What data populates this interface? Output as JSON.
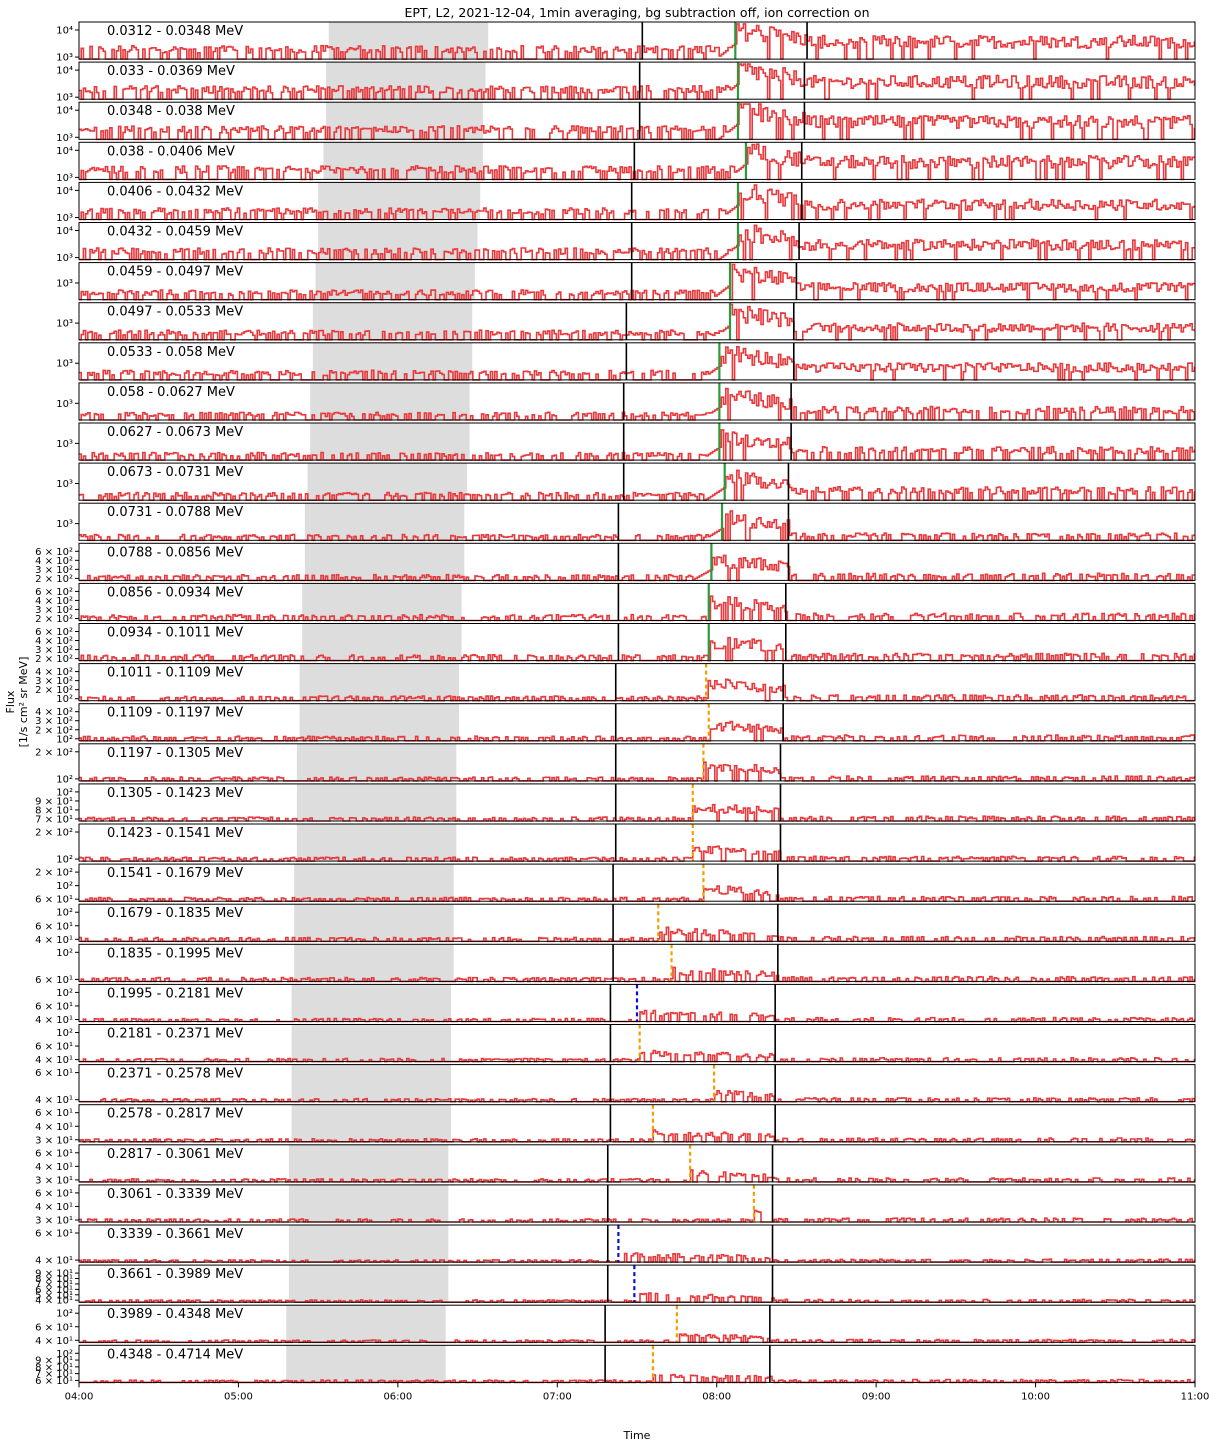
{
  "chart_data": {
    "type": "line",
    "title": "EPT, L2, 2021-12-04, 1min averaging, bg subtraction off, ion correction on",
    "xlabel": "Time",
    "ylabel": "Flux",
    "ylabel_unit": "[1/s cm² sr MeV]",
    "x_range": [
      "04:00",
      "11:00"
    ],
    "x_ticks": [
      "04:00",
      "05:00",
      "06:00",
      "07:00",
      "08:00",
      "09:00",
      "10:00",
      "11:00"
    ],
    "y_scale": "log",
    "series_color": "#e8393c",
    "shaded_color": "#dddddd",
    "panels": [
      {
        "label": "0.0312 - 0.0348 MeV",
        "yticks": [
          "10⁴",
          "10³"
        ],
        "shade": [
          "05:34",
          "06:34"
        ],
        "vlines": [
          "07:32",
          "08:34"
        ],
        "onset": {
          "time": "08:07",
          "color": "#2a9a3a"
        },
        "level": 0.35,
        "peak": 0.85
      },
      {
        "label": "0.033 - 0.0369 MeV",
        "yticks": [
          "10⁴",
          "10³"
        ],
        "shade": [
          "05:33",
          "06:33"
        ],
        "vlines": [
          "07:31",
          "08:33"
        ],
        "onset": {
          "time": "08:08",
          "color": "#2a9a3a"
        },
        "level": 0.35,
        "peak": 0.85
      },
      {
        "label": "0.0348 - 0.038 MeV",
        "yticks": [
          "10⁴",
          "10³"
        ],
        "shade": [
          "05:33",
          "06:32"
        ],
        "vlines": [
          "07:31",
          "08:33"
        ],
        "onset": {
          "time": "08:08",
          "color": "#2a9a3a"
        },
        "level": 0.35,
        "peak": 0.85
      },
      {
        "label": "0.038 - 0.0406 MeV",
        "yticks": [
          "10⁴",
          "10³"
        ],
        "shade": [
          "05:32",
          "06:32"
        ],
        "vlines": [
          "07:29",
          "08:32"
        ],
        "onset": {
          "time": "08:11",
          "color": "#2a9a3a"
        },
        "level": 0.35,
        "peak": 0.85
      },
      {
        "label": "0.0406 - 0.0432 MeV",
        "yticks": [
          "10⁴",
          "10³"
        ],
        "shade": [
          "05:30",
          "06:31"
        ],
        "vlines": [
          "07:28",
          "08:32"
        ],
        "onset": {
          "time": "08:08",
          "color": "#2a9a3a"
        },
        "level": 0.3,
        "peak": 0.8
      },
      {
        "label": "0.0432 - 0.0459 MeV",
        "yticks": [
          "10⁴",
          "10³"
        ],
        "shade": [
          "05:30",
          "06:30"
        ],
        "vlines": [
          "07:28",
          "08:31"
        ],
        "onset": {
          "time": "08:08",
          "color": "#2a9a3a"
        },
        "level": 0.3,
        "peak": 0.8
      },
      {
        "label": "0.0459 - 0.0497 MeV",
        "yticks": [
          "10³"
        ],
        "shade": [
          "05:29",
          "06:29"
        ],
        "vlines": [
          "07:28",
          "08:30"
        ],
        "onset": {
          "time": "08:05",
          "color": "#2a9a3a"
        },
        "level": 0.25,
        "peak": 0.8
      },
      {
        "label": "0.0497 - 0.0533 MeV",
        "yticks": [
          "10³"
        ],
        "shade": [
          "05:28",
          "06:28"
        ],
        "vlines": [
          "07:26",
          "08:29"
        ],
        "onset": {
          "time": "08:05",
          "color": "#2a9a3a"
        },
        "level": 0.25,
        "peak": 0.8
      },
      {
        "label": "0.0533 - 0.058 MeV",
        "yticks": [
          "10³"
        ],
        "shade": [
          "05:28",
          "06:28"
        ],
        "vlines": [
          "07:26",
          "08:29"
        ],
        "onset": {
          "time": "08:01",
          "color": "#2a9a3a"
        },
        "level": 0.25,
        "peak": 0.75
      },
      {
        "label": "0.058 - 0.0627 MeV",
        "yticks": [
          "10³"
        ],
        "shade": [
          "05:27",
          "06:27"
        ],
        "vlines": [
          "07:25",
          "08:28"
        ],
        "onset": {
          "time": "08:01",
          "color": "#2a9a3a"
        },
        "level": 0.2,
        "peak": 0.7
      },
      {
        "label": "0.0627 - 0.0673 MeV",
        "yticks": [
          "10³"
        ],
        "shade": [
          "05:27",
          "06:27"
        ],
        "vlines": [
          "07:25",
          "08:28"
        ],
        "onset": {
          "time": "08:01",
          "color": "#2a9a3a"
        },
        "level": 0.2,
        "peak": 0.7
      },
      {
        "label": "0.0673 - 0.0731 MeV",
        "yticks": [
          "10³"
        ],
        "shade": [
          "05:26",
          "06:26"
        ],
        "vlines": [
          "07:25",
          "08:27"
        ],
        "onset": {
          "time": "08:03",
          "color": "#2a9a3a"
        },
        "level": 0.2,
        "peak": 0.7
      },
      {
        "label": "0.0731 - 0.0788 MeV",
        "yticks": [
          "10³"
        ],
        "shade": [
          "05:25",
          "06:25"
        ],
        "vlines": [
          "07:23",
          "08:27"
        ],
        "onset": {
          "time": "08:02",
          "color": "#2a9a3a"
        },
        "level": 0.15,
        "peak": 0.65
      },
      {
        "label": "0.0788 - 0.0856 MeV",
        "yticks": [
          "6 × 10²",
          "4 × 10²",
          "3 × 10²",
          "2 × 10²"
        ],
        "shade": [
          "05:25",
          "06:25"
        ],
        "vlines": [
          "07:23",
          "08:27"
        ],
        "onset": {
          "time": "07:58",
          "color": "#2a9a3a"
        },
        "level": 0.15,
        "peak": 0.6
      },
      {
        "label": "0.0856 - 0.0934 MeV",
        "yticks": [
          "6 × 10²",
          "4 × 10²",
          "3 × 10²",
          "2 × 10²"
        ],
        "shade": [
          "05:24",
          "06:24"
        ],
        "vlines": [
          "07:23",
          "08:26"
        ],
        "onset": {
          "time": "07:57",
          "color": "#2a9a3a"
        },
        "level": 0.15,
        "peak": 0.55
      },
      {
        "label": "0.0934 - 0.1011 MeV",
        "yticks": [
          "6 × 10²",
          "4 × 10²",
          "3 × 10²",
          "2 × 10²"
        ],
        "shade": [
          "05:24",
          "06:24"
        ],
        "vlines": [
          "07:23",
          "08:26"
        ],
        "onset": {
          "time": "07:57",
          "color": "#2a9a3a"
        },
        "level": 0.15,
        "peak": 0.55
      },
      {
        "label": "0.1011 - 0.1109 MeV",
        "yticks": [
          "4 × 10²",
          "3 × 10²",
          "2 × 10²",
          "10²"
        ],
        "shade": [
          "05:23",
          "06:23"
        ],
        "vlines": [
          "07:22",
          "08:25"
        ],
        "onset": {
          "time": "07:56",
          "color": "#f2a000"
        },
        "level": 0.12,
        "peak": 0.5
      },
      {
        "label": "0.1109 - 0.1197 MeV",
        "yticks": [
          "4 × 10²",
          "3 × 10²",
          "2 × 10²",
          "10²"
        ],
        "shade": [
          "05:23",
          "06:23"
        ],
        "vlines": [
          "07:22",
          "08:25"
        ],
        "onset": {
          "time": "07:57",
          "color": "#f2a000"
        },
        "level": 0.12,
        "peak": 0.45
      },
      {
        "label": "0.1197 - 0.1305 MeV",
        "yticks": [
          "2 × 10²",
          "10²"
        ],
        "shade": [
          "05:22",
          "06:22"
        ],
        "vlines": [
          "07:22",
          "08:24"
        ],
        "onset": {
          "time": "07:55",
          "color": "#f2a000"
        },
        "level": 0.1,
        "peak": 0.45
      },
      {
        "label": "0.1305 - 0.1423 MeV",
        "yticks": [
          "10²",
          "9 × 10¹",
          "8 × 10¹",
          "7 × 10¹"
        ],
        "shade": [
          "05:22",
          "06:22"
        ],
        "vlines": [
          "07:22",
          "08:24"
        ],
        "onset": {
          "time": "07:51",
          "color": "#f2a000"
        },
        "level": 0.1,
        "peak": 0.4
      },
      {
        "label": "0.1423 - 0.1541 MeV",
        "yticks": [
          "2 × 10²",
          "10²"
        ],
        "shade": [
          "05:22",
          "06:22"
        ],
        "vlines": [
          "07:22",
          "08:24"
        ],
        "onset": {
          "time": "07:51",
          "color": "#f2a000"
        },
        "level": 0.1,
        "peak": 0.35
      },
      {
        "label": "0.1541 - 0.1679 MeV",
        "yticks": [
          "2 × 10²",
          "10²",
          "6 × 10¹"
        ],
        "shade": [
          "05:21",
          "06:21"
        ],
        "vlines": [
          "07:21",
          "08:23"
        ],
        "onset": {
          "time": "07:55",
          "color": "#f2a000"
        },
        "level": 0.1,
        "peak": 0.35
      },
      {
        "label": "0.1679 - 0.1835 MeV",
        "yticks": [
          "10²",
          "6 × 10¹",
          "4 × 10¹"
        ],
        "shade": [
          "05:21",
          "06:21"
        ],
        "vlines": [
          "07:21",
          "08:23"
        ],
        "onset": {
          "time": "07:38",
          "color": "#f2a000"
        },
        "level": 0.1,
        "peak": 0.3
      },
      {
        "label": "0.1835 - 0.1995 MeV",
        "yticks": [
          "10²",
          "6 × 10¹"
        ],
        "shade": [
          "05:21",
          "06:21"
        ],
        "vlines": [
          "07:21",
          "08:23"
        ],
        "onset": {
          "time": "07:43",
          "color": "#f2a000"
        },
        "level": 0.1,
        "peak": 0.3
      },
      {
        "label": "0.1995 - 0.2181 MeV",
        "yticks": [
          "10²",
          "6 × 10¹",
          "4 × 10¹"
        ],
        "shade": [
          "05:20",
          "06:20"
        ],
        "vlines": [
          "07:20",
          "08:22"
        ],
        "onset": {
          "time": "07:30",
          "color": "#1010cc"
        },
        "level": 0.08,
        "peak": 0.25
      },
      {
        "label": "0.2181 - 0.2371 MeV",
        "yticks": [
          "10²",
          "6 × 10¹",
          "4 × 10¹"
        ],
        "shade": [
          "05:20",
          "06:20"
        ],
        "vlines": [
          "07:20",
          "08:22"
        ],
        "onset": {
          "time": "07:31",
          "color": "#f2a000"
        },
        "level": 0.08,
        "peak": 0.25
      },
      {
        "label": "0.2371 - 0.2578 MeV",
        "yticks": [
          "6 × 10¹",
          "4 × 10¹"
        ],
        "shade": [
          "05:20",
          "06:20"
        ],
        "vlines": [
          "07:20",
          "08:22"
        ],
        "onset": {
          "time": "07:59",
          "color": "#f2a000"
        },
        "level": 0.08,
        "peak": 0.25
      },
      {
        "label": "0.2578 - 0.2817 MeV",
        "yticks": [
          "6 × 10¹",
          "4 × 10¹",
          "3 × 10¹"
        ],
        "shade": [
          "05:20",
          "06:20"
        ],
        "vlines": [
          "07:20",
          "08:22"
        ],
        "onset": {
          "time": "07:36",
          "color": "#f2a000"
        },
        "level": 0.08,
        "peak": 0.25
      },
      {
        "label": "0.2817 - 0.3061 MeV",
        "yticks": [
          "6 × 10¹",
          "4 × 10¹",
          "3 × 10¹"
        ],
        "shade": [
          "05:19",
          "06:19"
        ],
        "vlines": [
          "07:19",
          "08:21"
        ],
        "onset": {
          "time": "07:50",
          "color": "#f2a000"
        },
        "level": 0.08,
        "peak": 0.25
      },
      {
        "label": "0.3061 - 0.3339 MeV",
        "yticks": [
          "6 × 10¹",
          "4 × 10¹",
          "3 × 10¹"
        ],
        "shade": [
          "05:19",
          "06:19"
        ],
        "vlines": [
          "07:19",
          "08:21"
        ],
        "onset": {
          "time": "08:14",
          "color": "#f2a000"
        },
        "level": 0.08,
        "peak": 0.25
      },
      {
        "label": "0.3339 - 0.3661 MeV",
        "yticks": [
          "6 × 10¹",
          "4 × 10¹"
        ],
        "shade": [
          "05:19",
          "06:19"
        ],
        "vlines": [
          "07:19",
          "08:21"
        ],
        "onset": {
          "time": "07:23",
          "color": "#1010cc"
        },
        "level": 0.06,
        "peak": 0.2
      },
      {
        "label": "0.3661 - 0.3989 MeV",
        "yticks": [
          "9 × 10¹",
          "8 × 10¹",
          "7 × 10¹",
          "6 × 10¹",
          "5 × 10¹",
          "4 × 10¹"
        ],
        "shade": [
          "05:19",
          "06:19"
        ],
        "vlines": [
          "07:19",
          "08:21"
        ],
        "onset": {
          "time": "07:29",
          "color": "#1010cc"
        },
        "level": 0.06,
        "peak": 0.2
      },
      {
        "label": "0.3989 - 0.4348 MeV",
        "yticks": [
          "10²",
          "6 × 10¹",
          "4 × 10¹"
        ],
        "shade": [
          "05:18",
          "06:18"
        ],
        "vlines": [
          "07:18",
          "08:20"
        ],
        "onset": {
          "time": "07:45",
          "color": "#f2a000"
        },
        "level": 0.06,
        "peak": 0.2
      },
      {
        "label": "0.4348 - 0.4714 MeV",
        "yticks": [
          "10²",
          "9 × 10¹",
          "8 × 10¹",
          "7 × 10¹",
          "6 × 10¹"
        ],
        "shade": [
          "05:18",
          "06:18"
        ],
        "vlines": [
          "07:18",
          "08:20"
        ],
        "onset": {
          "time": "07:36",
          "color": "#f2a000"
        },
        "level": 0.06,
        "peak": 0.2
      }
    ]
  }
}
